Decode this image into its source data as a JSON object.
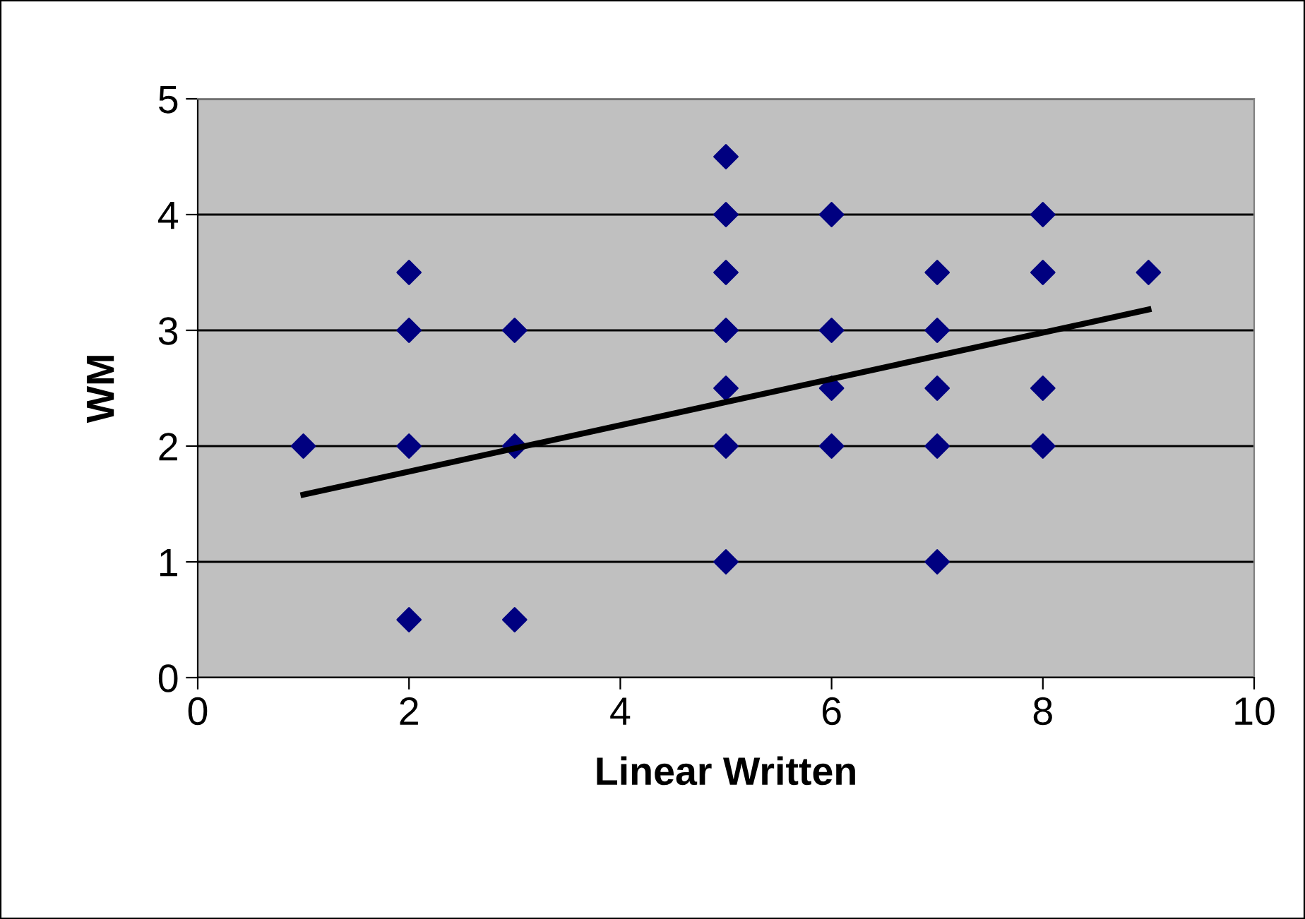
{
  "chart_data": {
    "type": "scatter",
    "xlabel": "Linear Written",
    "ylabel": "WM",
    "xlim": [
      0,
      10
    ],
    "ylim": [
      0,
      5
    ],
    "xticks": [
      0,
      2,
      4,
      6,
      8,
      10
    ],
    "yticks": [
      0,
      1,
      2,
      3,
      4,
      5
    ],
    "grid": "y",
    "series": [
      {
        "color": "#000080",
        "marker": "diamond",
        "x": [
          1,
          2,
          2,
          2,
          2,
          3,
          3,
          3,
          5,
          5,
          5,
          5,
          5,
          5,
          5,
          6,
          6,
          6,
          6,
          7,
          7,
          7,
          7,
          7,
          8,
          8,
          8,
          8,
          9
        ],
        "values": [
          2,
          3.5,
          3,
          2,
          0.5,
          3,
          2,
          0.5,
          4.5,
          4,
          3.5,
          3,
          2.5,
          2,
          1,
          4,
          3,
          2.5,
          2,
          3.5,
          3,
          2.5,
          2,
          1,
          4,
          3.5,
          2.5,
          2,
          3.5
        ]
      },
      {
        "type": "line",
        "color": "#000000",
        "x": [
          1,
          9
        ],
        "values": [
          1.58,
          3.18
        ],
        "marker": "none",
        "line_style": "solid"
      }
    ]
  }
}
